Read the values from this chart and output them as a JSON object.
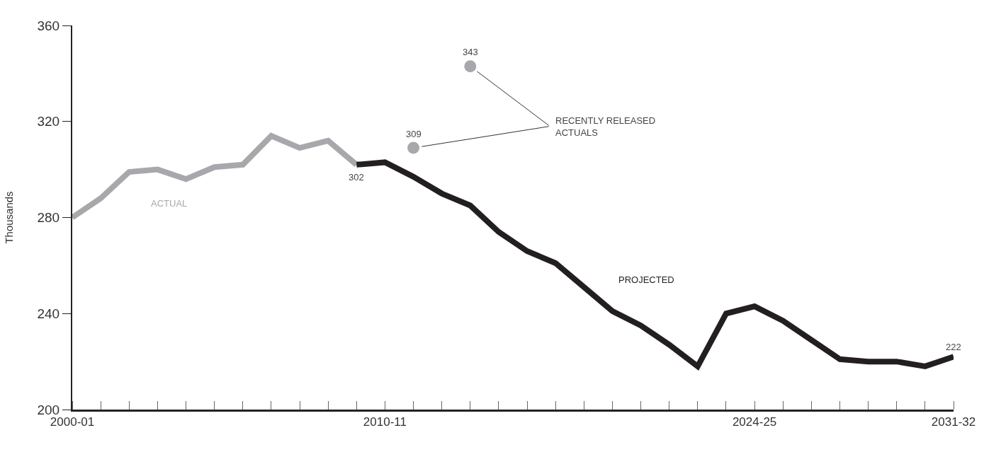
{
  "chart_data": {
    "type": "line",
    "ylabel": "Thousands",
    "categories": [
      "2000-01",
      null,
      null,
      null,
      null,
      null,
      null,
      null,
      null,
      null,
      null,
      "2010-11",
      null,
      null,
      null,
      null,
      null,
      null,
      null,
      null,
      null,
      null,
      null,
      null,
      "2024-25",
      null,
      null,
      null,
      null,
      null,
      null,
      "2031-32"
    ],
    "series": [
      {
        "name": "ACTUAL",
        "color": "#a7a8ab",
        "values": [
          280,
          288,
          299,
          300,
          296,
          301,
          302,
          314,
          309,
          312,
          302,
          null,
          null,
          null,
          null,
          null,
          null,
          null,
          null,
          null,
          null,
          null,
          null,
          null,
          null,
          null,
          null,
          null,
          null,
          null,
          null,
          null
        ],
        "value_labels": [
          null,
          null,
          null,
          null,
          null,
          null,
          null,
          null,
          null,
          null,
          "302",
          null,
          null,
          null,
          null,
          null,
          null,
          null,
          null,
          null,
          null,
          null,
          null,
          null,
          null,
          null,
          null,
          null,
          null,
          null,
          null,
          null
        ]
      },
      {
        "name": "PROJECTED",
        "color": "#231f20",
        "values": [
          null,
          null,
          null,
          null,
          null,
          null,
          null,
          null,
          null,
          null,
          302,
          303,
          297,
          290,
          285,
          274,
          266,
          261,
          251,
          241,
          235,
          227,
          218,
          240,
          243,
          237,
          229,
          221,
          220,
          220,
          218,
          222
        ],
        "value_labels": [
          null,
          null,
          null,
          null,
          null,
          null,
          null,
          null,
          null,
          null,
          null,
          null,
          null,
          null,
          null,
          null,
          null,
          null,
          null,
          null,
          null,
          null,
          null,
          null,
          null,
          null,
          null,
          null,
          null,
          null,
          null,
          "222"
        ]
      },
      {
        "name": "RECENTLY RELEASED ACTUALS",
        "type": "scatter",
        "marker": "circle",
        "color": "#a7a8ab",
        "values": [
          null,
          null,
          null,
          null,
          null,
          null,
          null,
          null,
          null,
          null,
          null,
          null,
          309,
          null,
          343,
          null,
          null,
          null,
          null,
          null,
          null,
          null,
          null,
          null,
          null,
          null,
          null,
          null,
          null,
          null,
          null,
          null
        ],
        "value_labels": [
          null,
          null,
          null,
          null,
          null,
          null,
          null,
          null,
          null,
          null,
          null,
          null,
          "309",
          null,
          "343",
          null,
          null,
          null,
          null,
          null,
          null,
          null,
          null,
          null,
          null,
          null,
          null,
          null,
          null,
          null,
          null,
          null
        ]
      }
    ],
    "ylim": [
      200,
      360
    ],
    "yticks": [
      200,
      240,
      280,
      320,
      360
    ]
  }
}
